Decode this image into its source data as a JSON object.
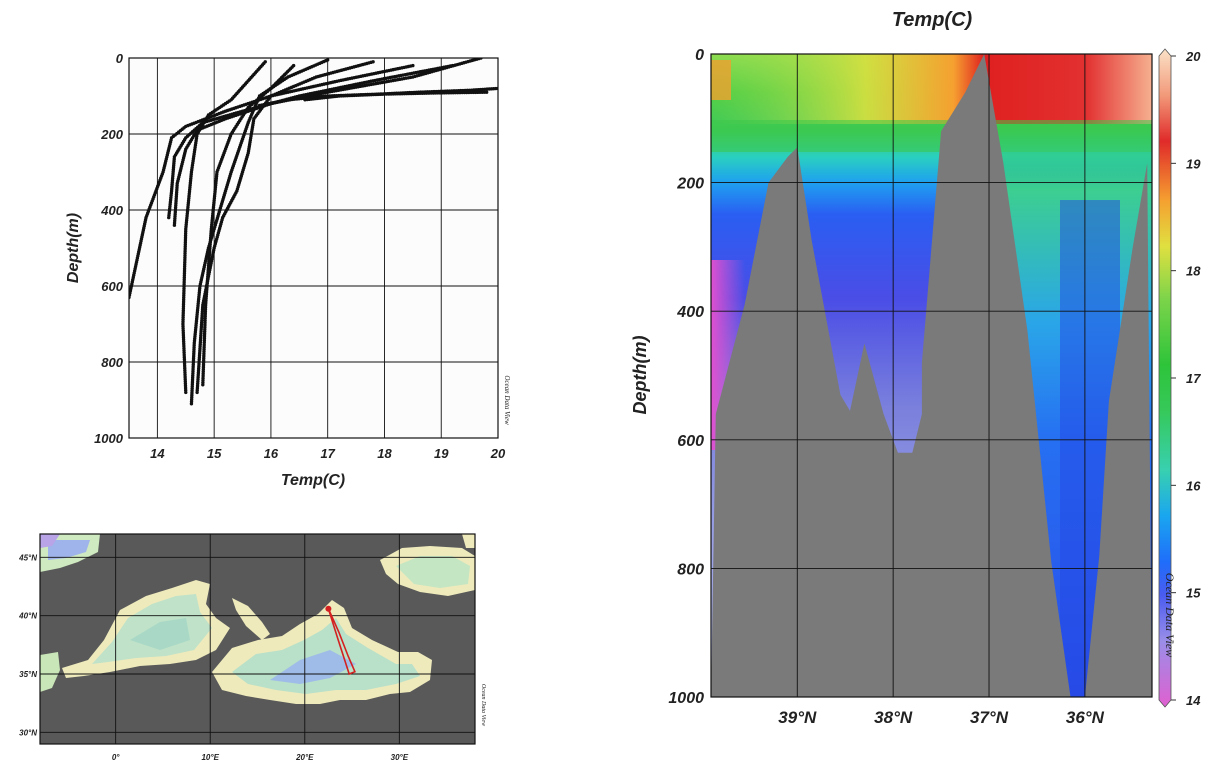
{
  "chart_data": [
    {
      "type": "scatter",
      "xlabel": "Temp(C)",
      "ylabel": "Depth(m)",
      "xlim": [
        13.5,
        20
      ],
      "ylim": [
        0,
        1000
      ],
      "y_inverted": true,
      "grid": true,
      "x_ticks": [
        14,
        15,
        16,
        17,
        18,
        19,
        20
      ],
      "y_ticks": [
        0,
        200,
        400,
        600,
        800,
        1000
      ],
      "watermark": "Ocean Data View",
      "point_color": "#111111",
      "series": [
        {
          "x": [
            15.9,
            15.6,
            15.3,
            14.9,
            14.7,
            14.6,
            14.5,
            14.45,
            14.5
          ],
          "y": [
            10,
            60,
            110,
            150,
            200,
            300,
            450,
            700,
            880
          ]
        },
        {
          "x": [
            16.4,
            16.0,
            15.6,
            15.3,
            15.05,
            14.95,
            14.85,
            14.8
          ],
          "y": [
            20,
            80,
            130,
            200,
            300,
            450,
            650,
            860
          ]
        },
        {
          "x": [
            17.0,
            16.3,
            15.8,
            15.6,
            15.3,
            15.1,
            14.9,
            14.75,
            14.65,
            14.6
          ],
          "y": [
            5,
            50,
            100,
            170,
            300,
            400,
            500,
            600,
            750,
            910
          ]
        },
        {
          "x": [
            17.8,
            16.8,
            16.0,
            15.7,
            15.6,
            15.4,
            15.15,
            15.0,
            14.8,
            14.7
          ],
          "y": [
            10,
            50,
            100,
            160,
            250,
            350,
            420,
            500,
            650,
            880
          ]
        },
        {
          "x": [
            19.7,
            18.5,
            17.0,
            16.0,
            15.2,
            14.7,
            14.5,
            14.35,
            14.3
          ],
          "y": [
            0,
            50,
            90,
            120,
            160,
            190,
            240,
            330,
            440
          ]
        },
        {
          "x": [
            19.2,
            17.8,
            16.5,
            15.5,
            14.8,
            14.5,
            14.3,
            14.25,
            14.2
          ],
          "y": [
            20,
            60,
            100,
            140,
            170,
            210,
            260,
            350,
            420
          ]
        },
        {
          "x": [
            18.5,
            17.2,
            16.0,
            15.2,
            14.5,
            14.25,
            14.1,
            13.8,
            13.6,
            13.5
          ],
          "y": [
            20,
            60,
            100,
            140,
            180,
            210,
            300,
            420,
            560,
            630
          ]
        },
        {
          "x": [
            20,
            19.5,
            18.6,
            17.9,
            17.0,
            16.3,
            15.8
          ],
          "y": [
            80,
            85,
            90,
            95,
            100,
            110,
            125
          ]
        },
        {
          "x": [
            19.8,
            18.9,
            18.0,
            17.2,
            16.6
          ],
          "y": [
            90,
            92,
            95,
            100,
            110
          ]
        }
      ]
    },
    {
      "type": "heatmap",
      "title": "Temp(C)",
      "ylabel": "Depth(m)",
      "ylim": [
        0,
        1000
      ],
      "y_inverted": true,
      "y_ticks": [
        0,
        200,
        400,
        600,
        800,
        1000
      ],
      "x_ticks": [
        "39°N",
        "38°N",
        "37°N",
        "36°N"
      ],
      "x_tick_values": [
        39,
        38,
        37,
        36
      ],
      "xlim": [
        39.9,
        35.3
      ],
      "colorbar": {
        "min": 14,
        "max": 20,
        "ticks": [
          14,
          15,
          16,
          17,
          18,
          19,
          20
        ]
      },
      "watermark": "Ocean Data View",
      "bathymetry_color": "#7a7a7a",
      "bottom_profile": {
        "lat": [
          39.9,
          39.85,
          39.55,
          39.3,
          39.1,
          39.0,
          38.85,
          38.55,
          38.45,
          38.3,
          38.1,
          37.95,
          37.8,
          37.7,
          37.7,
          37.5,
          37.25,
          37.05,
          36.85,
          36.6,
          36.35,
          36.15,
          36.0,
          35.85,
          35.75,
          35.5,
          35.35,
          35.3
        ],
        "depth": [
          1000,
          560,
          390,
          200,
          160,
          145,
          290,
          530,
          555,
          450,
          560,
          620,
          620,
          560,
          480,
          120,
          60,
          0,
          170,
          430,
          790,
          1000,
          1000,
          780,
          540,
          300,
          170,
          1000
        ]
      }
    },
    {
      "type": "map",
      "lat_ticks": [
        "45°N",
        "40°N",
        "35°N",
        "30°N"
      ],
      "lat_values": [
        45,
        40,
        35,
        30
      ],
      "lon_ticks": [
        "0°",
        "10°E",
        "20°E",
        "30°E"
      ],
      "lon_values": [
        0,
        10,
        20,
        30
      ],
      "lon_range": [
        -8,
        38
      ],
      "lat_range": [
        29,
        47
      ],
      "watermark": "Ocean Data View",
      "land_color": "#595959",
      "track_color": "#d32020",
      "track": {
        "lon": [
          22.5,
          23.6,
          24.6,
          25.3,
          24.7,
          23.5,
          22.5
        ],
        "lat": [
          40.6,
          38.6,
          36.5,
          35.2,
          35.0,
          38.0,
          40.6
        ]
      }
    }
  ]
}
